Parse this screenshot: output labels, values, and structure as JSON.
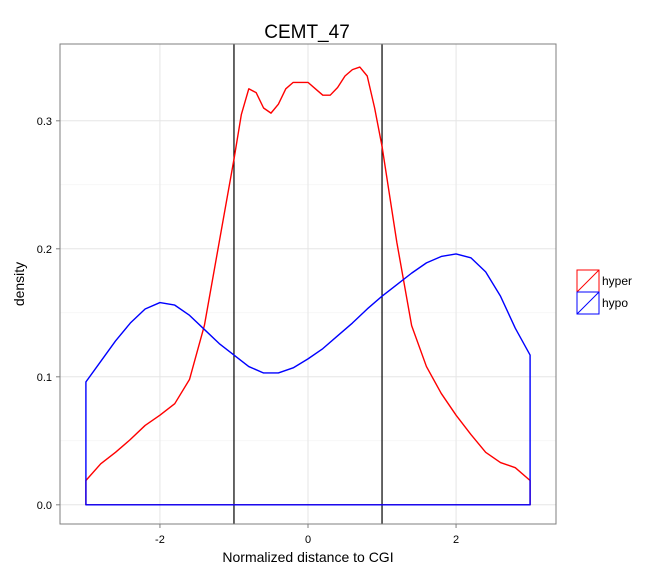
{
  "chart_data": {
    "type": "density",
    "title": "CEMT_47",
    "xlabel": "Normalized distance to CGI",
    "ylabel": "density",
    "xlim": [
      -3.35,
      3.35
    ],
    "ylim": [
      -0.015,
      0.36
    ],
    "x_ticks": [
      -2,
      0,
      2
    ],
    "x_tick_labels": [
      "-2",
      "0",
      "2"
    ],
    "y_ticks": [
      0.0,
      0.1,
      0.2,
      0.3
    ],
    "y_tick_labels": [
      "0.0",
      "0.1",
      "0.2",
      "0.3"
    ],
    "grid": true,
    "legend_position": "right",
    "vlines": [
      -1,
      1
    ],
    "series": [
      {
        "name": "hyper",
        "color": "#ff0000",
        "x": [
          -3.0,
          -2.8,
          -2.6,
          -2.4,
          -2.2,
          -2.0,
          -1.8,
          -1.6,
          -1.4,
          -1.2,
          -1.0,
          -0.9,
          -0.8,
          -0.7,
          -0.6,
          -0.5,
          -0.4,
          -0.3,
          -0.2,
          -0.1,
          0.0,
          0.1,
          0.2,
          0.3,
          0.4,
          0.5,
          0.6,
          0.7,
          0.8,
          0.9,
          1.0,
          1.2,
          1.4,
          1.6,
          1.8,
          2.0,
          2.2,
          2.4,
          2.6,
          2.8,
          3.0
        ],
        "y": [
          0.019,
          0.032,
          0.041,
          0.051,
          0.062,
          0.07,
          0.079,
          0.098,
          0.14,
          0.205,
          0.27,
          0.305,
          0.325,
          0.322,
          0.31,
          0.306,
          0.313,
          0.325,
          0.33,
          0.33,
          0.33,
          0.325,
          0.32,
          0.32,
          0.326,
          0.335,
          0.34,
          0.342,
          0.335,
          0.31,
          0.28,
          0.205,
          0.14,
          0.108,
          0.087,
          0.07,
          0.055,
          0.041,
          0.033,
          0.029,
          0.019
        ]
      },
      {
        "name": "hypo",
        "color": "#0000ff",
        "x": [
          -3.0,
          -2.8,
          -2.6,
          -2.4,
          -2.2,
          -2.0,
          -1.8,
          -1.6,
          -1.4,
          -1.2,
          -1.0,
          -0.8,
          -0.6,
          -0.4,
          -0.2,
          0.0,
          0.2,
          0.4,
          0.6,
          0.8,
          1.0,
          1.2,
          1.4,
          1.6,
          1.8,
          2.0,
          2.2,
          2.4,
          2.6,
          2.8,
          3.0
        ],
        "y": [
          0.096,
          0.112,
          0.128,
          0.142,
          0.153,
          0.158,
          0.156,
          0.148,
          0.137,
          0.126,
          0.117,
          0.108,
          0.103,
          0.103,
          0.107,
          0.114,
          0.122,
          0.132,
          0.142,
          0.153,
          0.163,
          0.172,
          0.181,
          0.189,
          0.194,
          0.196,
          0.193,
          0.182,
          0.163,
          0.138,
          0.117
        ]
      }
    ]
  }
}
